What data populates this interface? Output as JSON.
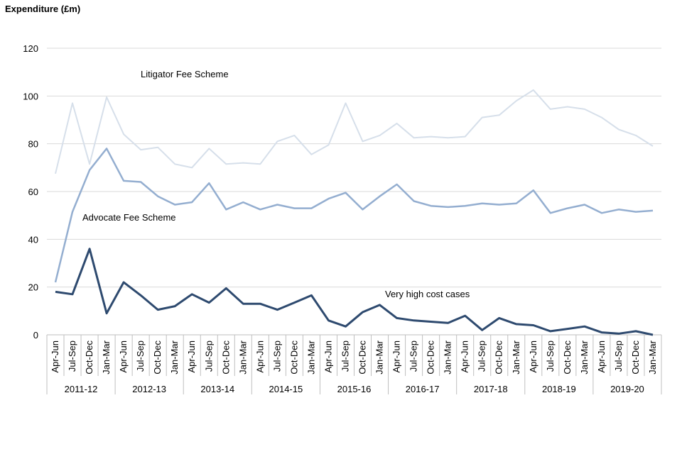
{
  "chart_data": {
    "type": "line",
    "title": "",
    "ylabel": "Expenditure (£m)",
    "xlabel": "",
    "ylim": [
      0,
      120
    ],
    "yticks": [
      0,
      20,
      40,
      60,
      80,
      100,
      120
    ],
    "grid": true,
    "quarters": [
      "Apr-Jun",
      "Jul-Sep",
      "Oct-Dec",
      "Jan-Mar"
    ],
    "years": [
      "2011-12",
      "2012-13",
      "2013-14",
      "2014-15",
      "2015-16",
      "2016-17",
      "2017-18",
      "2018-19",
      "2019-20"
    ],
    "series": [
      {
        "name": "Litigator Fee Scheme",
        "color": "#d6dfea",
        "values": [
          67.5,
          97,
          71.5,
          99.5,
          84,
          77.5,
          78.5,
          71.5,
          70,
          78,
          71.5,
          72,
          71.5,
          81,
          83.5,
          75.5,
          79.5,
          97,
          81,
          83.5,
          88.5,
          82.5,
          83,
          82.5,
          83,
          91,
          92,
          98,
          102.5,
          94.5,
          95.5,
          94.5,
          91,
          86,
          83.5,
          79
        ]
      },
      {
        "name": "Advocate Fee Scheme",
        "color": "#94aed0",
        "values": [
          22,
          51.5,
          69,
          78,
          64.5,
          64,
          58,
          54.5,
          55.5,
          63.5,
          52.5,
          55.5,
          52.5,
          54.5,
          53,
          53,
          57,
          59.5,
          52.5,
          58,
          63,
          56,
          54,
          53.5,
          54,
          55,
          54.5,
          55,
          60.5,
          51,
          53,
          54.5,
          51,
          52.5,
          51.5,
          52
        ]
      },
      {
        "name": "Very high cost cases",
        "color": "#2e4a6f",
        "values": [
          18,
          17,
          36,
          9,
          22,
          16.5,
          10.5,
          12,
          17,
          13.5,
          19.5,
          13,
          13,
          10.5,
          13.5,
          16.5,
          6,
          3.5,
          9.5,
          12.5,
          7,
          6,
          5.5,
          5,
          8,
          2,
          7,
          4.5,
          4,
          1.5,
          2.5,
          3.5,
          1,
          0.5,
          1.5,
          0
        ]
      }
    ]
  }
}
